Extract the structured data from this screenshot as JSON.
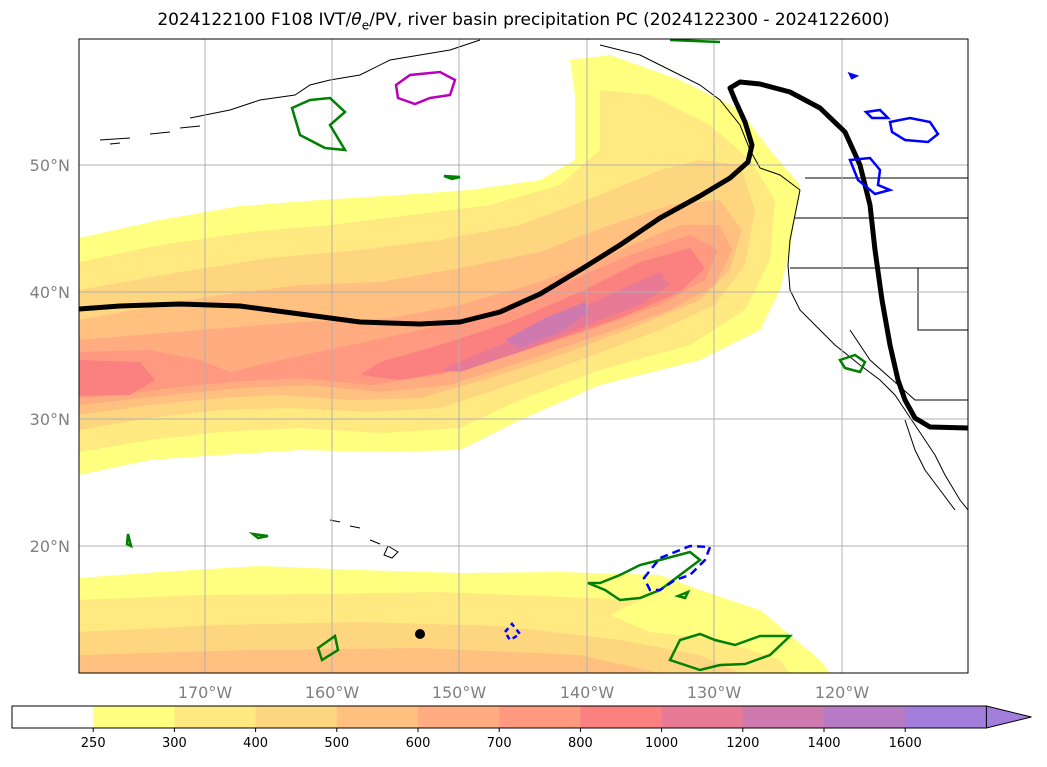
{
  "title": {
    "prefix": "2024122100 F108 IVT/",
    "theta": "θ",
    "theta_sub": "e",
    "suffix": "/PV, river basin precipitation PC (2024122300 - 2024122600)"
  },
  "map": {
    "projection": "Mercator",
    "region": "North-East Pacific and western North America",
    "lon_ticks": [
      "170°W",
      "160°W",
      "150°W",
      "140°W",
      "130°W",
      "120°W"
    ],
    "lat_ticks": [
      "50°N",
      "40°N",
      "30°N",
      "20°N"
    ],
    "grid": true
  },
  "colorbar": {
    "levels": [
      "250",
      "300",
      "400",
      "500",
      "600",
      "700",
      "800",
      "1000",
      "1200",
      "1400",
      "1600"
    ],
    "colors": [
      "#ffffff",
      "#ffff80",
      "#ffe980",
      "#ffd680",
      "#ffc080",
      "#ffad80",
      "#ff9a80",
      "#fb8080",
      "#e87a96",
      "#cf7aaf",
      "#b77bc5",
      "#a27ddb"
    ],
    "extend": "max"
  },
  "overlays": {
    "ivt_fill": "IVT filled contours (yellow → red → purple)",
    "theta_e_line": "#000000",
    "pv_positive": "#008000",
    "pv_negative": "#0000ff",
    "pv_magenta": "#bb00bb"
  }
}
